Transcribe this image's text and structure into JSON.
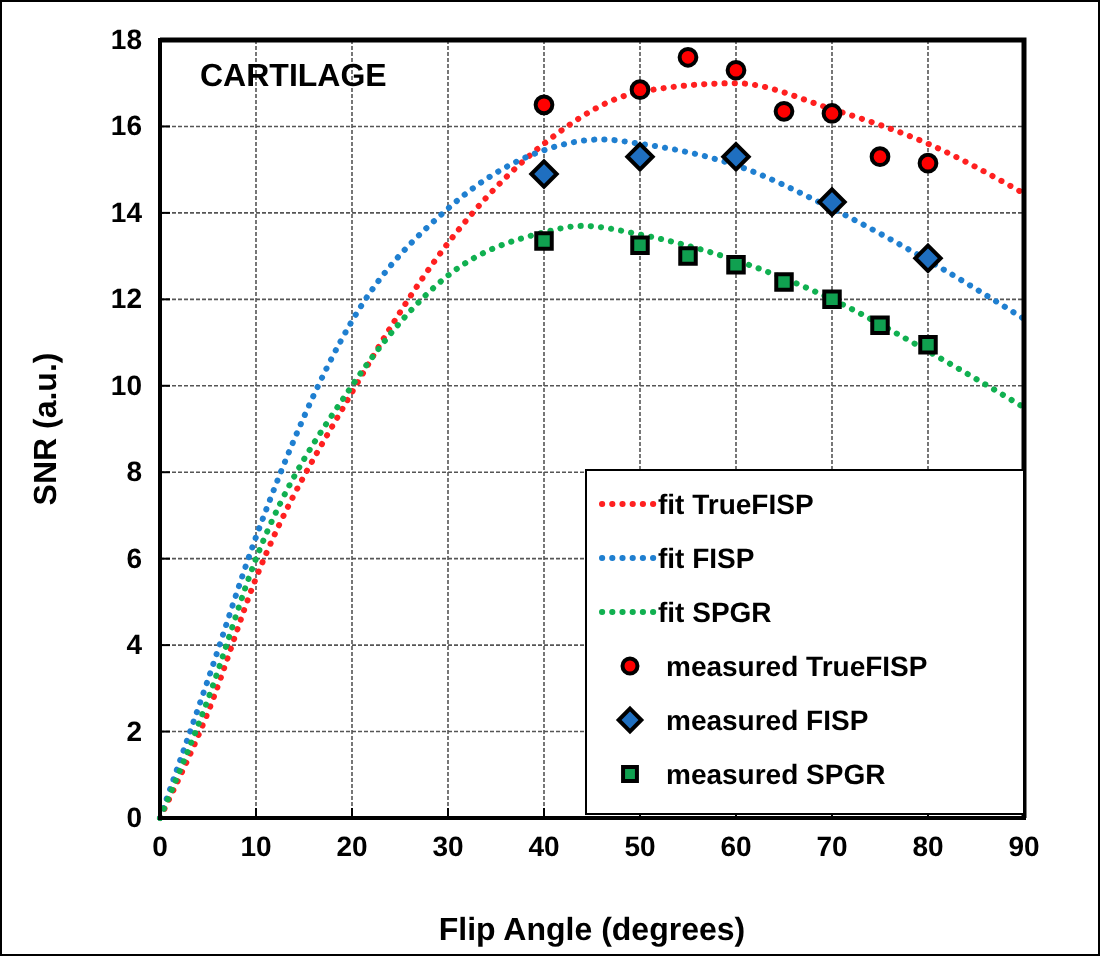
{
  "chart_data": {
    "type": "line",
    "title": "CARTILAGE",
    "xlabel": "Flip Angle (degrees)",
    "ylabel": "SNR (a.u.)",
    "xlim": [
      0,
      90
    ],
    "xticks": [
      0,
      10,
      20,
      30,
      40,
      50,
      60,
      70,
      80,
      90
    ],
    "ylim": [
      0,
      18
    ],
    "yticks": [
      0,
      2,
      4,
      6,
      8,
      10,
      12,
      14,
      16,
      18
    ],
    "grid": true,
    "legend": "bottom right",
    "series": [
      {
        "name": "fit TrueFISP",
        "line_style": "dotted",
        "marker": "none",
        "color": "#ff2020",
        "x": [
          0,
          5,
          10,
          20,
          30,
          40,
          50,
          60,
          70,
          80,
          90
        ],
        "values": [
          0,
          2.45,
          5.55,
          9.85,
          13.3,
          15.6,
          16.8,
          17.0,
          16.4,
          15.6,
          14.45
        ]
      },
      {
        "name": "fit FISP",
        "line_style": "dotted",
        "marker": "none",
        "color": "#1f7fd0",
        "x": [
          0,
          5,
          10,
          20,
          30,
          40,
          46,
          50,
          60,
          70,
          80,
          90
        ],
        "values": [
          0,
          3.2,
          6.5,
          11.5,
          14.1,
          15.45,
          15.7,
          15.6,
          15.1,
          14.1,
          12.9,
          11.55
        ]
      },
      {
        "name": "fit SPGR",
        "line_style": "dotted",
        "marker": "none",
        "color": "#10b050",
        "x": [
          0,
          5,
          10,
          20,
          30,
          40,
          44,
          50,
          60,
          70,
          80,
          90
        ],
        "values": [
          0,
          2.75,
          6.0,
          10.0,
          12.55,
          13.55,
          13.7,
          13.5,
          12.9,
          12.0,
          10.8,
          9.5
        ]
      },
      {
        "name": "measured TrueFISP",
        "type": "scatter",
        "marker": "circle",
        "color": "#ff0000",
        "x": [
          40,
          50,
          55,
          60,
          65,
          70,
          75,
          80
        ],
        "values": [
          16.5,
          16.85,
          17.6,
          17.3,
          16.35,
          16.3,
          15.3,
          15.15
        ]
      },
      {
        "name": "measured FISP",
        "type": "scatter",
        "marker": "diamond",
        "color": "#1f6fc0",
        "x": [
          40,
          50,
          60,
          70,
          80
        ],
        "values": [
          14.9,
          15.3,
          15.3,
          14.25,
          12.95
        ]
      },
      {
        "name": "measured SPGR",
        "type": "scatter",
        "marker": "square",
        "color": "#10a050",
        "x": [
          40,
          50,
          55,
          60,
          65,
          70,
          75,
          80
        ],
        "values": [
          13.35,
          13.25,
          13.0,
          12.8,
          12.4,
          12.0,
          11.4,
          10.95
        ]
      }
    ]
  }
}
